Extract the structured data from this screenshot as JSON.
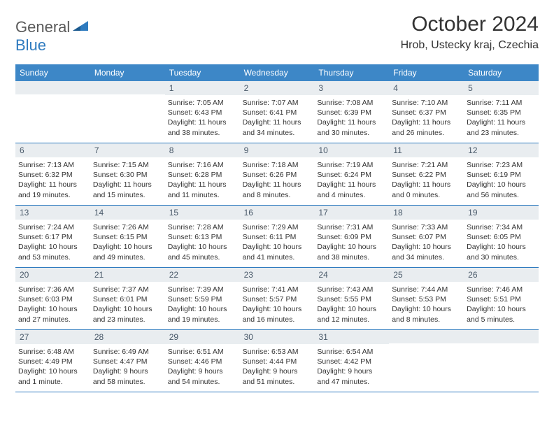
{
  "logo": {
    "text1": "General",
    "text2": "Blue"
  },
  "title": "October 2024",
  "location": "Hrob, Ustecky kraj, Czechia",
  "colors": {
    "header_bg": "#3d87c7",
    "header_text": "#ffffff",
    "daynum_bg": "#e9edf0",
    "daynum_text": "#4a5a6a",
    "border": "#2f7bbf",
    "logo_gray": "#5a5a5a",
    "logo_blue": "#2f7bbf"
  },
  "weekdays": [
    "Sunday",
    "Monday",
    "Tuesday",
    "Wednesday",
    "Thursday",
    "Friday",
    "Saturday"
  ],
  "weeks": [
    [
      null,
      null,
      {
        "n": "1",
        "sr": "Sunrise: 7:05 AM",
        "ss": "Sunset: 6:43 PM",
        "d1": "Daylight: 11 hours",
        "d2": "and 38 minutes."
      },
      {
        "n": "2",
        "sr": "Sunrise: 7:07 AM",
        "ss": "Sunset: 6:41 PM",
        "d1": "Daylight: 11 hours",
        "d2": "and 34 minutes."
      },
      {
        "n": "3",
        "sr": "Sunrise: 7:08 AM",
        "ss": "Sunset: 6:39 PM",
        "d1": "Daylight: 11 hours",
        "d2": "and 30 minutes."
      },
      {
        "n": "4",
        "sr": "Sunrise: 7:10 AM",
        "ss": "Sunset: 6:37 PM",
        "d1": "Daylight: 11 hours",
        "d2": "and 26 minutes."
      },
      {
        "n": "5",
        "sr": "Sunrise: 7:11 AM",
        "ss": "Sunset: 6:35 PM",
        "d1": "Daylight: 11 hours",
        "d2": "and 23 minutes."
      }
    ],
    [
      {
        "n": "6",
        "sr": "Sunrise: 7:13 AM",
        "ss": "Sunset: 6:32 PM",
        "d1": "Daylight: 11 hours",
        "d2": "and 19 minutes."
      },
      {
        "n": "7",
        "sr": "Sunrise: 7:15 AM",
        "ss": "Sunset: 6:30 PM",
        "d1": "Daylight: 11 hours",
        "d2": "and 15 minutes."
      },
      {
        "n": "8",
        "sr": "Sunrise: 7:16 AM",
        "ss": "Sunset: 6:28 PM",
        "d1": "Daylight: 11 hours",
        "d2": "and 11 minutes."
      },
      {
        "n": "9",
        "sr": "Sunrise: 7:18 AM",
        "ss": "Sunset: 6:26 PM",
        "d1": "Daylight: 11 hours",
        "d2": "and 8 minutes."
      },
      {
        "n": "10",
        "sr": "Sunrise: 7:19 AM",
        "ss": "Sunset: 6:24 PM",
        "d1": "Daylight: 11 hours",
        "d2": "and 4 minutes."
      },
      {
        "n": "11",
        "sr": "Sunrise: 7:21 AM",
        "ss": "Sunset: 6:22 PM",
        "d1": "Daylight: 11 hours",
        "d2": "and 0 minutes."
      },
      {
        "n": "12",
        "sr": "Sunrise: 7:23 AM",
        "ss": "Sunset: 6:19 PM",
        "d1": "Daylight: 10 hours",
        "d2": "and 56 minutes."
      }
    ],
    [
      {
        "n": "13",
        "sr": "Sunrise: 7:24 AM",
        "ss": "Sunset: 6:17 PM",
        "d1": "Daylight: 10 hours",
        "d2": "and 53 minutes."
      },
      {
        "n": "14",
        "sr": "Sunrise: 7:26 AM",
        "ss": "Sunset: 6:15 PM",
        "d1": "Daylight: 10 hours",
        "d2": "and 49 minutes."
      },
      {
        "n": "15",
        "sr": "Sunrise: 7:28 AM",
        "ss": "Sunset: 6:13 PM",
        "d1": "Daylight: 10 hours",
        "d2": "and 45 minutes."
      },
      {
        "n": "16",
        "sr": "Sunrise: 7:29 AM",
        "ss": "Sunset: 6:11 PM",
        "d1": "Daylight: 10 hours",
        "d2": "and 41 minutes."
      },
      {
        "n": "17",
        "sr": "Sunrise: 7:31 AM",
        "ss": "Sunset: 6:09 PM",
        "d1": "Daylight: 10 hours",
        "d2": "and 38 minutes."
      },
      {
        "n": "18",
        "sr": "Sunrise: 7:33 AM",
        "ss": "Sunset: 6:07 PM",
        "d1": "Daylight: 10 hours",
        "d2": "and 34 minutes."
      },
      {
        "n": "19",
        "sr": "Sunrise: 7:34 AM",
        "ss": "Sunset: 6:05 PM",
        "d1": "Daylight: 10 hours",
        "d2": "and 30 minutes."
      }
    ],
    [
      {
        "n": "20",
        "sr": "Sunrise: 7:36 AM",
        "ss": "Sunset: 6:03 PM",
        "d1": "Daylight: 10 hours",
        "d2": "and 27 minutes."
      },
      {
        "n": "21",
        "sr": "Sunrise: 7:37 AM",
        "ss": "Sunset: 6:01 PM",
        "d1": "Daylight: 10 hours",
        "d2": "and 23 minutes."
      },
      {
        "n": "22",
        "sr": "Sunrise: 7:39 AM",
        "ss": "Sunset: 5:59 PM",
        "d1": "Daylight: 10 hours",
        "d2": "and 19 minutes."
      },
      {
        "n": "23",
        "sr": "Sunrise: 7:41 AM",
        "ss": "Sunset: 5:57 PM",
        "d1": "Daylight: 10 hours",
        "d2": "and 16 minutes."
      },
      {
        "n": "24",
        "sr": "Sunrise: 7:43 AM",
        "ss": "Sunset: 5:55 PM",
        "d1": "Daylight: 10 hours",
        "d2": "and 12 minutes."
      },
      {
        "n": "25",
        "sr": "Sunrise: 7:44 AM",
        "ss": "Sunset: 5:53 PM",
        "d1": "Daylight: 10 hours",
        "d2": "and 8 minutes."
      },
      {
        "n": "26",
        "sr": "Sunrise: 7:46 AM",
        "ss": "Sunset: 5:51 PM",
        "d1": "Daylight: 10 hours",
        "d2": "and 5 minutes."
      }
    ],
    [
      {
        "n": "27",
        "sr": "Sunrise: 6:48 AM",
        "ss": "Sunset: 4:49 PM",
        "d1": "Daylight: 10 hours",
        "d2": "and 1 minute."
      },
      {
        "n": "28",
        "sr": "Sunrise: 6:49 AM",
        "ss": "Sunset: 4:47 PM",
        "d1": "Daylight: 9 hours",
        "d2": "and 58 minutes."
      },
      {
        "n": "29",
        "sr": "Sunrise: 6:51 AM",
        "ss": "Sunset: 4:46 PM",
        "d1": "Daylight: 9 hours",
        "d2": "and 54 minutes."
      },
      {
        "n": "30",
        "sr": "Sunrise: 6:53 AM",
        "ss": "Sunset: 4:44 PM",
        "d1": "Daylight: 9 hours",
        "d2": "and 51 minutes."
      },
      {
        "n": "31",
        "sr": "Sunrise: 6:54 AM",
        "ss": "Sunset: 4:42 PM",
        "d1": "Daylight: 9 hours",
        "d2": "and 47 minutes."
      },
      null,
      null
    ]
  ]
}
